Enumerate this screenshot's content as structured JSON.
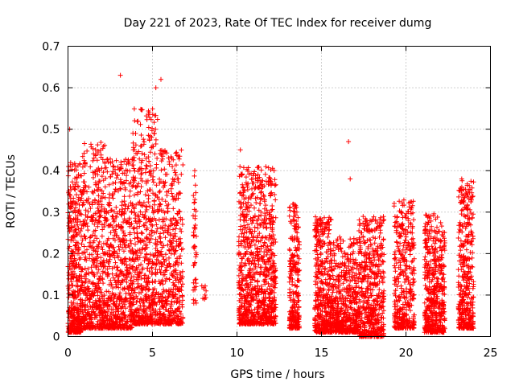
{
  "chart_data": {
    "type": "scatter",
    "title": "Day 221 of 2023, Rate Of TEC Index for receiver dumg",
    "xlabel": "GPS time / hours",
    "ylabel": "ROTI / TECUs",
    "xlim": [
      0,
      25
    ],
    "ylim": [
      0,
      0.7
    ],
    "xticks": [
      0,
      5,
      10,
      15,
      20,
      25
    ],
    "xtick_labels": [
      "0",
      "5",
      "10",
      "15",
      "20",
      "25"
    ],
    "yticks": [
      0,
      0.1,
      0.2,
      0.3,
      0.4,
      0.5,
      0.6,
      0.7
    ],
    "ytick_labels": [
      "0",
      "0.1",
      "0.2",
      "0.3",
      "0.4",
      "0.5",
      "0.6",
      "0.7"
    ],
    "grid": true,
    "marker": "+",
    "color": "#ff0000",
    "notable_points": [
      {
        "x": 0.1,
        "y": 0.5
      },
      {
        "x": 3.1,
        "y": 0.63
      },
      {
        "x": 5.2,
        "y": 0.6
      },
      {
        "x": 5.5,
        "y": 0.62
      },
      {
        "x": 4.8,
        "y": 0.54
      },
      {
        "x": 7.5,
        "y": 0.4
      },
      {
        "x": 10.2,
        "y": 0.45
      },
      {
        "x": 16.6,
        "y": 0.47
      },
      {
        "x": 16.7,
        "y": 0.38
      },
      {
        "x": 23.3,
        "y": 0.38
      }
    ],
    "clusters": [
      {
        "x_range": [
          0.0,
          0.8
        ],
        "y_range": [
          0.01,
          0.42
        ],
        "count": 420
      },
      {
        "x_range": [
          0.8,
          2.2
        ],
        "y_range": [
          0.02,
          0.47
        ],
        "count": 520
      },
      {
        "x_range": [
          2.2,
          3.8
        ],
        "y_range": [
          0.02,
          0.43
        ],
        "count": 560
      },
      {
        "x_range": [
          3.8,
          5.3
        ],
        "y_range": [
          0.03,
          0.55
        ],
        "count": 560
      },
      {
        "x_range": [
          5.3,
          6.8
        ],
        "y_range": [
          0.03,
          0.45
        ],
        "count": 460
      },
      {
        "x_range": [
          7.4,
          7.6
        ],
        "y_range": [
          0.08,
          0.39
        ],
        "count": 45
      },
      {
        "x_range": [
          7.9,
          8.2
        ],
        "y_range": [
          0.09,
          0.13
        ],
        "count": 10
      },
      {
        "x_range": [
          10.1,
          12.3
        ],
        "y_range": [
          0.03,
          0.41
        ],
        "count": 900
      },
      {
        "x_range": [
          13.1,
          13.7
        ],
        "y_range": [
          0.02,
          0.32
        ],
        "count": 260
      },
      {
        "x_range": [
          14.6,
          15.6
        ],
        "y_range": [
          0.01,
          0.29
        ],
        "count": 420
      },
      {
        "x_range": [
          15.6,
          17.2
        ],
        "y_range": [
          0.01,
          0.24
        ],
        "count": 520
      },
      {
        "x_range": [
          17.2,
          18.7
        ],
        "y_range": [
          0.0,
          0.29
        ],
        "count": 520
      },
      {
        "x_range": [
          19.3,
          20.5
        ],
        "y_range": [
          0.02,
          0.33
        ],
        "count": 380
      },
      {
        "x_range": [
          21.1,
          22.3
        ],
        "y_range": [
          0.01,
          0.3
        ],
        "count": 480
      },
      {
        "x_range": [
          23.1,
          24.0
        ],
        "y_range": [
          0.02,
          0.38
        ],
        "count": 380
      }
    ]
  }
}
